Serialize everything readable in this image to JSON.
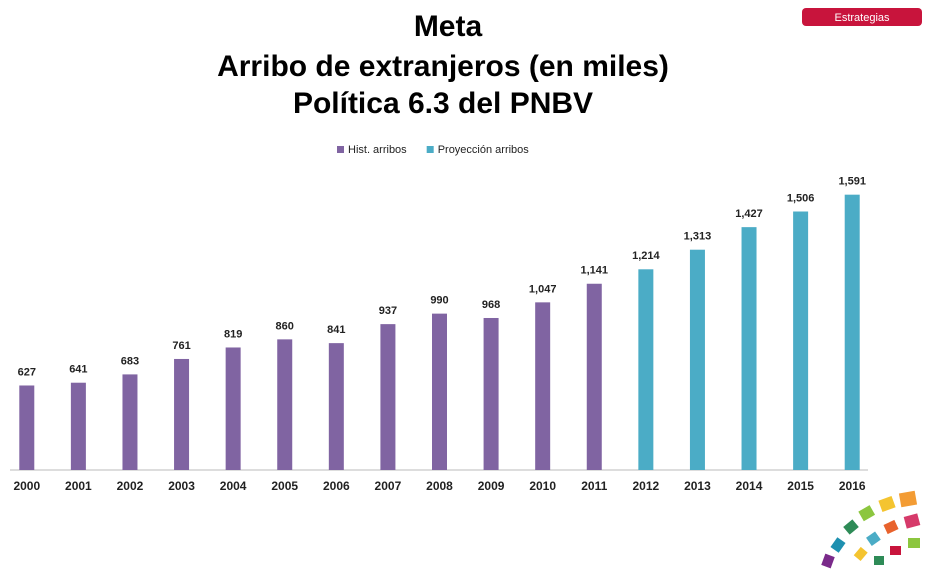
{
  "header": {
    "button": "Estrategias"
  },
  "chart_data": {
    "type": "bar",
    "title_lines": [
      "Meta",
      "Arribo de extranjeros (en miles)",
      "Política 6.3 del PNBV"
    ],
    "categories": [
      "2000",
      "2001",
      "2002",
      "2003",
      "2004",
      "2005",
      "2006",
      "2007",
      "2008",
      "2009",
      "2010",
      "2011",
      "2012",
      "2013",
      "2014",
      "2015",
      "2016"
    ],
    "series": [
      {
        "name": "Hist. arribos",
        "color": "#8064a2",
        "values": [
          627,
          641,
          683,
          761,
          819,
          860,
          841,
          937,
          990,
          968,
          1047,
          1141,
          null,
          null,
          null,
          null,
          null
        ],
        "value_labels": [
          "627",
          "641",
          "683",
          "761",
          "819",
          "860",
          "841",
          "937",
          "990",
          "968",
          "1,047",
          "1,141",
          null,
          null,
          null,
          null,
          null
        ]
      },
      {
        "name": "Proyección arribos",
        "color": "#4bacc6",
        "values": [
          null,
          null,
          null,
          null,
          null,
          null,
          null,
          null,
          null,
          null,
          null,
          null,
          1214,
          1313,
          1427,
          1506,
          1591
        ],
        "value_labels": [
          null,
          null,
          null,
          null,
          null,
          null,
          null,
          null,
          null,
          null,
          null,
          null,
          "1,214",
          "1,313",
          "1,427",
          "1,506",
          "1,591"
        ]
      }
    ],
    "ylim": [
      200,
      1650
    ],
    "legend": "top"
  }
}
